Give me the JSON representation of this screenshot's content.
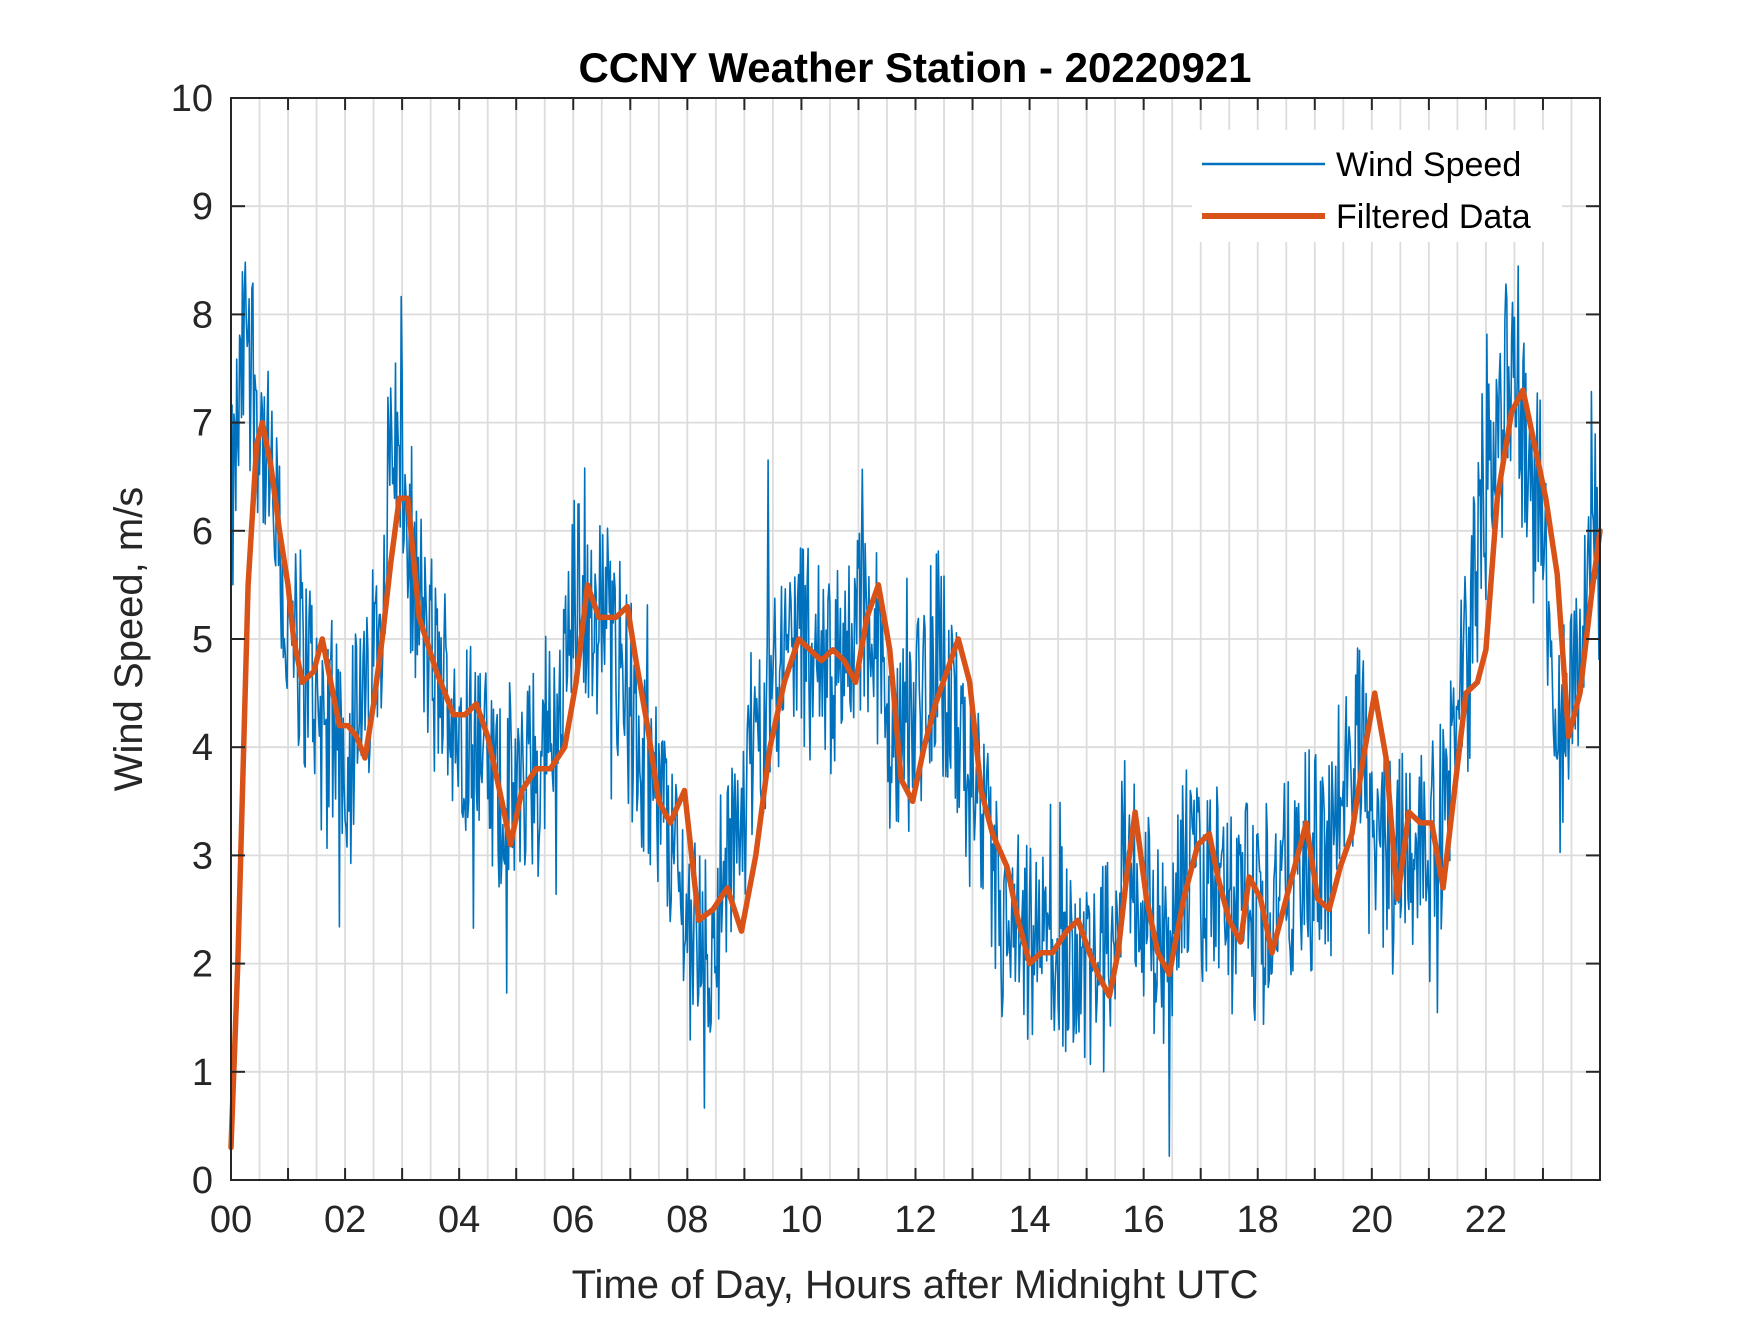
{
  "chart_data": {
    "type": "line",
    "title": "CCNY Weather Station - 20220921",
    "xlabel": "Time of Day, Hours after Midnight UTC",
    "ylabel": "Wind Speed, m/s",
    "xlim": [
      0,
      24
    ],
    "ylim": [
      0,
      10
    ],
    "grid": true,
    "legend_position": "top-right",
    "x_ticks": [
      0,
      2,
      4,
      6,
      8,
      10,
      12,
      14,
      16,
      18,
      20,
      22
    ],
    "x_tick_labels": [
      "00",
      "02",
      "04",
      "06",
      "08",
      "10",
      "12",
      "14",
      "16",
      "18",
      "20",
      "22"
    ],
    "y_ticks": [
      0,
      1,
      2,
      3,
      4,
      5,
      6,
      7,
      8,
      9,
      10
    ],
    "y_tick_labels": [
      "0",
      "1",
      "2",
      "3",
      "4",
      "5",
      "6",
      "7",
      "8",
      "9",
      "10"
    ],
    "x_minor_grid_step": 0.5,
    "series": [
      {
        "name": "Wind Speed",
        "color": "#0072BD",
        "noise_amplitude": 1.2,
        "x": [
          0,
          0.2,
          0.3,
          0.5,
          0.7,
          1.0,
          1.3,
          1.6,
          2.0,
          2.3,
          2.6,
          2.85,
          3.0,
          3.2,
          3.6,
          4.0,
          4.4,
          4.8,
          5.0,
          5.4,
          5.8,
          6.1,
          6.4,
          6.8,
          7.2,
          7.6,
          8.0,
          8.3,
          8.7,
          9.0,
          9.4,
          9.8,
          10.2,
          10.6,
          11.0,
          11.3,
          11.6,
          12.0,
          12.4,
          12.8,
          13.2,
          13.6,
          14.0,
          14.4,
          14.8,
          15.1,
          15.4,
          15.7,
          16.0,
          16.4,
          16.8,
          17.2,
          17.6,
          18.0,
          18.4,
          18.8,
          19.2,
          19.6,
          19.9,
          20.2,
          20.5,
          20.8,
          21.1,
          21.4,
          21.7,
          22.0,
          22.2,
          22.5,
          22.8,
          23.0,
          23.3,
          23.5,
          23.8,
          24.0
        ],
        "values": [
          6.0,
          7.5,
          8.0,
          7.0,
          6.3,
          5.0,
          4.8,
          4.3,
          4.0,
          4.2,
          5.2,
          7.0,
          6.4,
          5.5,
          4.6,
          4.3,
          3.9,
          3.4,
          3.6,
          3.8,
          4.4,
          5.6,
          5.3,
          5.0,
          3.8,
          3.4,
          2.4,
          2.2,
          2.8,
          3.5,
          4.6,
          5.0,
          4.9,
          4.7,
          5.3,
          5.0,
          3.8,
          4.4,
          5.0,
          4.0,
          3.0,
          2.2,
          2.0,
          2.1,
          2.2,
          1.7,
          2.4,
          3.1,
          2.4,
          2.1,
          2.9,
          2.6,
          2.5,
          2.4,
          2.7,
          2.8,
          3.0,
          3.8,
          4.3,
          2.8,
          3.3,
          3.1,
          2.9,
          3.8,
          4.8,
          6.8,
          7.3,
          7.5,
          6.5,
          6.0,
          4.0,
          4.5,
          5.5,
          6.0
        ]
      },
      {
        "name": "Filtered Data",
        "color": "#D95319",
        "x": [
          0,
          0.12,
          0.3,
          0.45,
          0.55,
          0.7,
          0.85,
          1.0,
          1.1,
          1.25,
          1.45,
          1.6,
          1.75,
          1.9,
          2.05,
          2.2,
          2.35,
          2.5,
          2.65,
          2.8,
          2.95,
          3.1,
          3.3,
          3.6,
          3.9,
          4.1,
          4.3,
          4.5,
          4.75,
          4.9,
          5.1,
          5.35,
          5.6,
          5.85,
          6.05,
          6.25,
          6.45,
          6.75,
          6.95,
          7.1,
          7.3,
          7.5,
          7.7,
          7.95,
          8.2,
          8.45,
          8.7,
          8.95,
          9.2,
          9.45,
          9.7,
          9.95,
          10.15,
          10.35,
          10.55,
          10.75,
          10.95,
          11.15,
          11.35,
          11.55,
          11.75,
          11.95,
          12.15,
          12.35,
          12.55,
          12.75,
          12.95,
          13.15,
          13.35,
          13.6,
          13.8,
          14.0,
          14.2,
          14.4,
          14.65,
          14.85,
          15.05,
          15.2,
          15.4,
          15.55,
          15.7,
          15.85,
          16.05,
          16.25,
          16.45,
          16.7,
          16.95,
          17.15,
          17.3,
          17.5,
          17.7,
          17.85,
          18.05,
          18.25,
          18.45,
          18.65,
          18.85,
          19.05,
          19.25,
          19.45,
          19.65,
          19.85,
          20.05,
          20.25,
          20.45,
          20.65,
          20.85,
          21.05,
          21.25,
          21.45,
          21.65,
          21.85,
          22.0,
          22.2,
          22.45,
          22.65,
          22.85,
          23.05,
          23.25,
          23.45,
          23.65,
          23.85,
          24.0
        ],
        "values": [
          0.3,
          2.0,
          5.5,
          6.8,
          7.0,
          6.6,
          6.0,
          5.5,
          5.0,
          4.6,
          4.7,
          5.0,
          4.6,
          4.2,
          4.2,
          4.1,
          3.9,
          4.4,
          5.0,
          5.7,
          6.3,
          6.3,
          5.2,
          4.7,
          4.3,
          4.3,
          4.4,
          4.1,
          3.5,
          3.1,
          3.6,
          3.8,
          3.8,
          4.0,
          4.6,
          5.5,
          5.2,
          5.2,
          5.3,
          4.8,
          4.2,
          3.5,
          3.3,
          3.6,
          2.4,
          2.5,
          2.7,
          2.3,
          3.0,
          4.0,
          4.6,
          5.0,
          4.9,
          4.8,
          4.9,
          4.8,
          4.6,
          5.2,
          5.5,
          4.9,
          3.7,
          3.5,
          4.0,
          4.4,
          4.7,
          5.0,
          4.6,
          3.6,
          3.2,
          2.9,
          2.4,
          2.0,
          2.1,
          2.1,
          2.3,
          2.4,
          2.1,
          1.9,
          1.7,
          2.1,
          2.8,
          3.4,
          2.6,
          2.1,
          1.9,
          2.6,
          3.1,
          3.2,
          2.8,
          2.4,
          2.2,
          2.8,
          2.6,
          2.1,
          2.5,
          2.9,
          3.3,
          2.6,
          2.5,
          2.9,
          3.2,
          3.9,
          4.5,
          3.9,
          2.6,
          3.4,
          3.3,
          3.3,
          2.7,
          3.6,
          4.5,
          4.6,
          4.9,
          6.3,
          7.1,
          7.3,
          6.8,
          6.3,
          5.6,
          4.1,
          4.5,
          5.4,
          6.0
        ]
      }
    ]
  }
}
